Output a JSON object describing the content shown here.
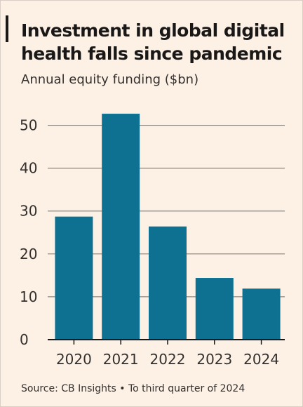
{
  "header": {
    "title": "Investment in global digital health falls since pandemic",
    "subtitle": "Annual equity funding ($bn)"
  },
  "footer": {
    "source": "Source: CB Insights • To third quarter of 2024"
  },
  "colors": {
    "bar": "#0f7192",
    "background": "#fdf1e6",
    "gridline": "#8a8580",
    "axis": "#1a1817"
  },
  "chart_data": {
    "type": "bar",
    "title": "Investment in global digital health falls since pandemic",
    "subtitle": "Annual equity funding ($bn)",
    "xlabel": "",
    "ylabel": "",
    "categories": [
      "2020",
      "2021",
      "2022",
      "2023",
      "2024"
    ],
    "values": [
      28.7,
      52.7,
      26.4,
      14.4,
      11.9
    ],
    "ylim": [
      0,
      55
    ],
    "yticks": [
      0,
      10,
      20,
      30,
      40,
      50
    ],
    "grid": true,
    "legend": "none"
  }
}
